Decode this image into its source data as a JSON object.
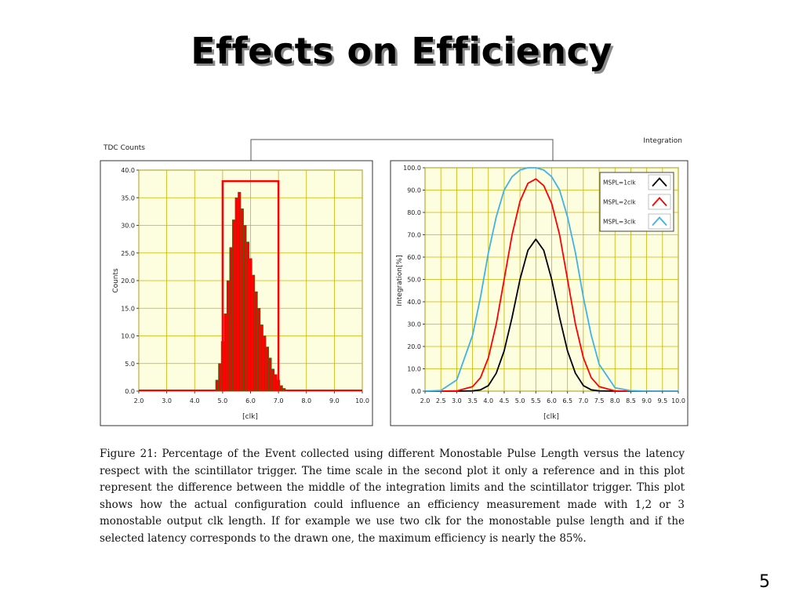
{
  "slide": {
    "title": "Effects on Efficiency",
    "page_number": "5",
    "caption": "Figure 21: Percentage of the Event collected using different Monostable Pulse Length versus the latency respect with the scintillator trigger. The time scale in the second plot it only a reference and in this plot represent the difference between the middle of the integration limits and the scintillator trigger. This plot shows how the actual configuration could influence an efficiency measurement made with 1,2 or 3 monostable output clk length. If for example we use two clk for the monostable pulse length and if the selected latency corresponds to the drawn one, the maximum efficiency is nearly the 85%."
  },
  "colors": {
    "plot_background": "#fdfde0",
    "grid": "#c9b400",
    "histogram": "#ff0000",
    "histogram_edge": "#1a7a1a",
    "window": "#ff0000",
    "connector": "#555555"
  },
  "chart_data": [
    {
      "type": "bar",
      "title": "TDC Counts",
      "xlabel": "[clk]",
      "ylabel": "Counts",
      "xlim": [
        2.0,
        10.0
      ],
      "ylim": [
        0.0,
        40.0
      ],
      "grid": true,
      "xticks": [
        "2.0",
        "3.0",
        "4.0",
        "5.0",
        "6.0",
        "7.0",
        "8.0",
        "9.0",
        "10.0"
      ],
      "yticks": [
        "0.0",
        "5.0",
        "10.0",
        "15.0",
        "20.0",
        "25.0",
        "30.0",
        "35.0",
        "40.0"
      ],
      "histogram": {
        "x": [
          4.8,
          4.9,
          5.0,
          5.1,
          5.2,
          5.3,
          5.4,
          5.5,
          5.6,
          5.7,
          5.8,
          5.9,
          6.0,
          6.1,
          6.2,
          6.3,
          6.4,
          6.5,
          6.6,
          6.7,
          6.8,
          6.9,
          7.0,
          7.1,
          7.2
        ],
        "y": [
          2,
          5,
          9,
          14,
          20,
          26,
          31,
          35,
          36,
          33,
          30,
          27,
          24,
          21,
          18,
          15,
          12,
          10,
          8,
          6,
          4,
          3,
          2,
          1,
          0.5
        ]
      },
      "selection_window": {
        "x_start": 5.0,
        "x_end": 7.0,
        "height": 38.0
      }
    },
    {
      "type": "line",
      "title": "Integration",
      "xlabel": "[clk]",
      "ylabel": "Integration[%]",
      "xlim": [
        2.0,
        10.0
      ],
      "ylim": [
        0.0,
        100.0
      ],
      "grid": true,
      "legend_position": "top-right",
      "xticks": [
        "2.0",
        "2.5",
        "3.0",
        "3.5",
        "4.0",
        "4.5",
        "5.0",
        "5.5",
        "6.0",
        "6.5",
        "7.0",
        "7.5",
        "8.0",
        "8.5",
        "9.0",
        "9.5",
        "10.0"
      ],
      "yticks": [
        "0.0",
        "10.0",
        "20.0",
        "30.0",
        "40.0",
        "50.0",
        "60.0",
        "70.0",
        "80.0",
        "90.0",
        "100.0"
      ],
      "x": [
        2.0,
        2.5,
        3.0,
        3.5,
        3.75,
        4.0,
        4.25,
        4.5,
        4.75,
        5.0,
        5.25,
        5.5,
        5.75,
        6.0,
        6.25,
        6.5,
        6.75,
        7.0,
        7.25,
        7.5,
        8.0,
        8.5,
        9.0,
        10.0
      ],
      "series": [
        {
          "name": "MSPL=1clk",
          "color": "#000000",
          "values": [
            0,
            0,
            0,
            0.1,
            0.6,
            2.5,
            8,
            18,
            33,
            50,
            63,
            68,
            63,
            50,
            33,
            18,
            8,
            2.5,
            0.6,
            0.1,
            0,
            0,
            0,
            0
          ]
        },
        {
          "name": "MSPL=2clk",
          "color": "#ff0000",
          "values": [
            0,
            0,
            0.1,
            2,
            6,
            15,
            30,
            50,
            70,
            85,
            93,
            95,
            92,
            84,
            70,
            50,
            30,
            15,
            6,
            2,
            0.1,
            0,
            0,
            0
          ]
        },
        {
          "name": "MSPL=3clk",
          "color": "#3fb3e6",
          "values": [
            0,
            0.3,
            5,
            25,
            42,
            62,
            78,
            90,
            96,
            99,
            100,
            100,
            99,
            96,
            90,
            78,
            62,
            42,
            25,
            12,
            1.5,
            0.2,
            0,
            0
          ]
        }
      ]
    }
  ]
}
